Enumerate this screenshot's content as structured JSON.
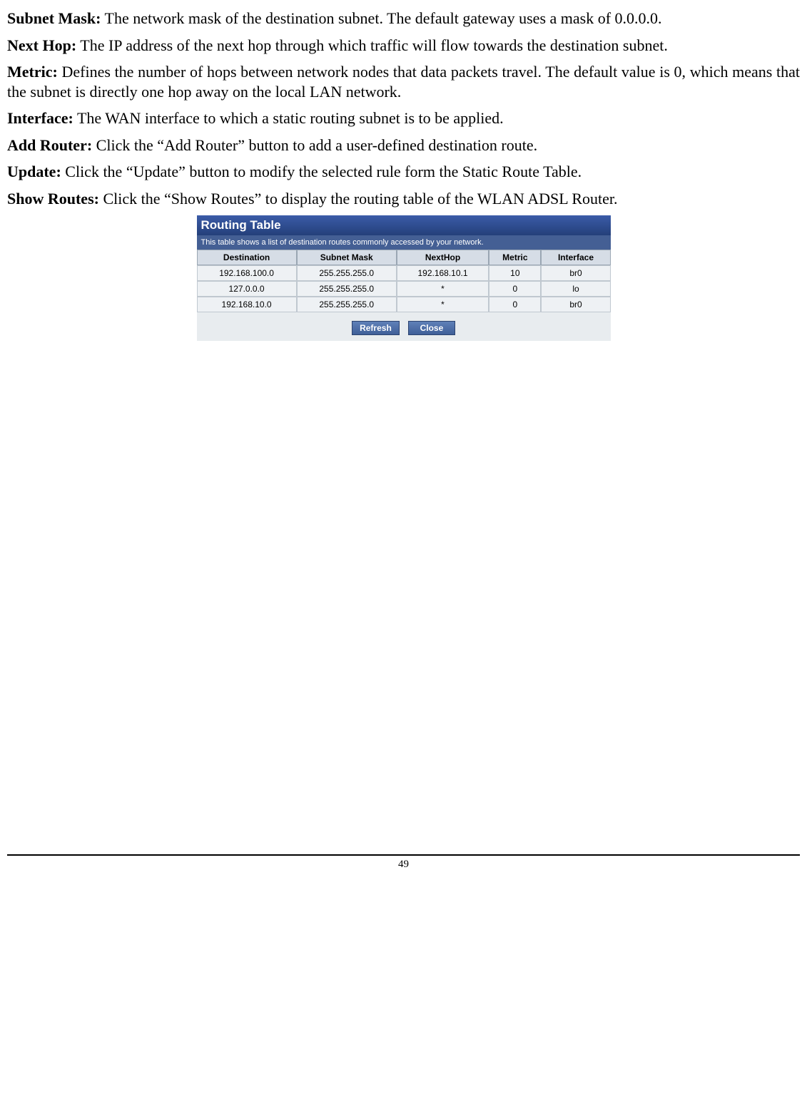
{
  "definitions": [
    {
      "term": "Subnet Mask:",
      "text": " The network mask of the destination subnet. The default gateway uses a mask of 0.0.0.0."
    },
    {
      "term": "Next Hop:",
      "text": " The IP address of the next hop through which traffic will flow towards the destination subnet."
    },
    {
      "term": "Metric:",
      "text": " Defines the number of hops between network nodes that data packets travel. The default value is 0, which means that the subnet is directly one hop away on the local LAN network."
    },
    {
      "term": "Interface:",
      "text": " The WAN interface to which a static routing subnet is to be applied."
    },
    {
      "term": "Add Router:",
      "text": " Click the “Add Router” button to add a user-defined destination route."
    },
    {
      "term": "Update:",
      "text": " Click the “Update” button to modify the selected rule form the Static Route Table."
    },
    {
      "term": "Show Routes:",
      "text": " Click the “Show Routes” to display the routing table of the WLAN ADSL Router."
    }
  ],
  "routing": {
    "title": "Routing Table",
    "description": "This table shows a list of destination routes commonly accessed by your network.",
    "columns": [
      "Destination",
      "Subnet Mask",
      "NextHop",
      "Metric",
      "Interface"
    ],
    "rows": [
      [
        "192.168.100.0",
        "255.255.255.0",
        "192.168.10.1",
        "10",
        "br0"
      ],
      [
        "127.0.0.0",
        "255.255.255.0",
        "*",
        "0",
        "lo"
      ],
      [
        "192.168.10.0",
        "255.255.255.0",
        "*",
        "0",
        "br0"
      ]
    ],
    "refresh_label": "Refresh",
    "close_label": "Close",
    "colors": {
      "title_bg": "#2b4a8b",
      "desc_bg": "#445f94",
      "th_bg": "#d6dde6",
      "td_bg": "#eef1f4",
      "btn_bg": "#4f6fa8"
    }
  },
  "page_number": "49"
}
